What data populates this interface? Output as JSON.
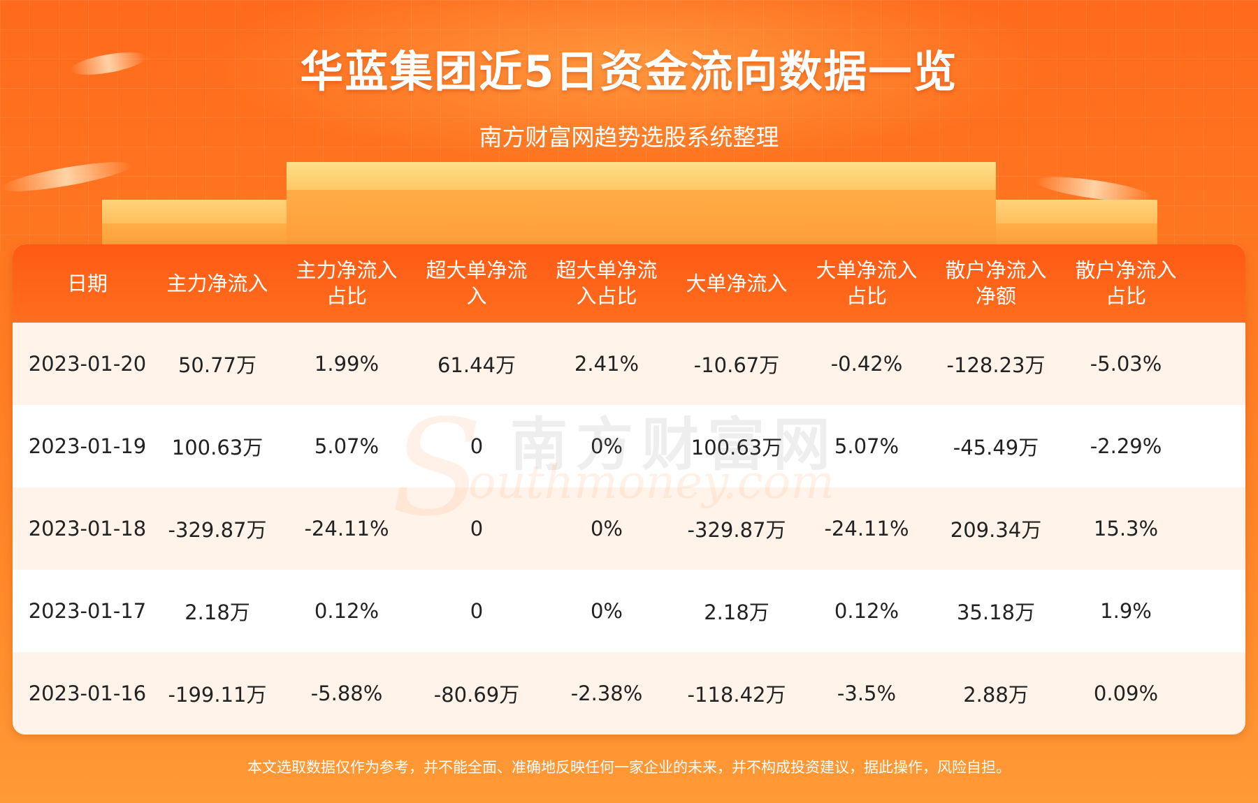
{
  "header": {
    "title": "华蓝集团近5日资金流向数据一览",
    "subtitle": "南方财富网趋势选股系统整理"
  },
  "table": {
    "columns": [
      "日期",
      "主力净流入",
      "主力净流入\n占比",
      "超大单净流\n入",
      "超大单净流\n入占比",
      "大单净流入",
      "大单净流入\n占比",
      "散户净流入\n净额",
      "散户净流入\n占比"
    ],
    "rows": [
      [
        "2023-01-20",
        "50.77万",
        "1.99%",
        "61.44万",
        "2.41%",
        "-10.67万",
        "-0.42%",
        "-128.23万",
        "-5.03%"
      ],
      [
        "2023-01-19",
        "100.63万",
        "5.07%",
        "0",
        "0%",
        "100.63万",
        "5.07%",
        "-45.49万",
        "-2.29%"
      ],
      [
        "2023-01-18",
        "-329.87万",
        "-24.11%",
        "0",
        "0%",
        "-329.87万",
        "-24.11%",
        "209.34万",
        "15.3%"
      ],
      [
        "2023-01-17",
        "2.18万",
        "0.12%",
        "0",
        "0%",
        "2.18万",
        "0.12%",
        "35.18万",
        "1.9%"
      ],
      [
        "2023-01-16",
        "-199.11万",
        "-5.88%",
        "-80.69万",
        "-2.38%",
        "-118.42万",
        "-3.5%",
        "2.88万",
        "0.09%"
      ]
    ]
  },
  "watermark": {
    "cn": "南方财富网",
    "en": "outhmoney.com",
    "letter": "S"
  },
  "footer": {
    "disclaimer": "本文选取数据仅作为参考，并不能全面、准确地反映任何一家企业的未来，并不构成投资建议，据此操作，风险自担。"
  },
  "colors": {
    "header_bg": "#ff5a14",
    "row_alt": "#fff3ea",
    "page_bg": "#ff7a22"
  }
}
